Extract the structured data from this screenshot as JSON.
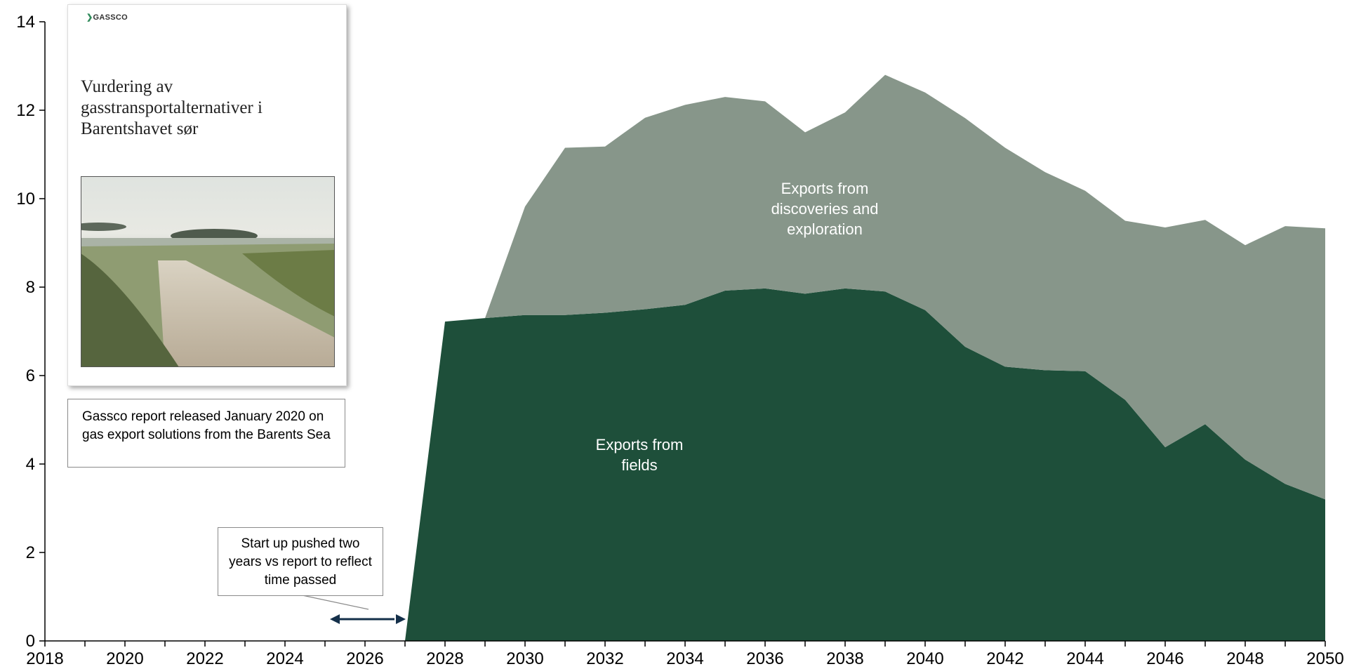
{
  "chart_data": {
    "type": "area",
    "stacked": true,
    "x": [
      2027,
      2028,
      2029,
      2030,
      2031,
      2032,
      2033,
      2034,
      2035,
      2036,
      2037,
      2038,
      2039,
      2040,
      2041,
      2042,
      2043,
      2044,
      2045,
      2046,
      2047,
      2048,
      2049,
      2050
    ],
    "series": [
      {
        "name": "Exports from fields",
        "color": "#1e4f3a",
        "values": [
          0,
          7.22,
          7.3,
          7.37,
          7.37,
          7.42,
          7.5,
          7.6,
          7.92,
          7.97,
          7.85,
          7.97,
          7.9,
          7.48,
          6.65,
          6.2,
          6.12,
          6.1,
          5.45,
          4.38,
          4.9,
          4.1,
          3.55,
          3.2
        ]
      },
      {
        "name": "Exports from discoveries and exploration",
        "color": "#87968a",
        "values": [
          null,
          null,
          0,
          2.45,
          3.78,
          3.76,
          4.33,
          4.52,
          4.38,
          4.23,
          3.65,
          3.98,
          4.9,
          4.92,
          5.17,
          4.95,
          4.48,
          4.08,
          4.05,
          4.97,
          4.62,
          4.85,
          5.83,
          6.13
        ]
      }
    ],
    "xlim": [
      2018,
      2050
    ],
    "ylim": [
      0,
      14
    ],
    "xticks": [
      2018,
      2020,
      2022,
      2024,
      2026,
      2028,
      2030,
      2032,
      2034,
      2036,
      2038,
      2040,
      2042,
      2044,
      2046,
      2048,
      2050
    ],
    "xminorticks": [
      2019,
      2021,
      2023,
      2025,
      2027,
      2029,
      2031,
      2033,
      2035,
      2037,
      2039,
      2041,
      2043,
      2045,
      2047,
      2049
    ],
    "yticks": [
      0,
      2,
      4,
      6,
      8,
      10,
      12,
      14
    ],
    "annotation": "Start up pushed two years vs report to reflect time passed"
  },
  "report": {
    "logo": "GASSCO",
    "title": "Vurdering av gasstransportalternativer i Barentshavet sør",
    "caption": "Gassco report released January 2020 on gas export solutions from the Barents Sea"
  }
}
